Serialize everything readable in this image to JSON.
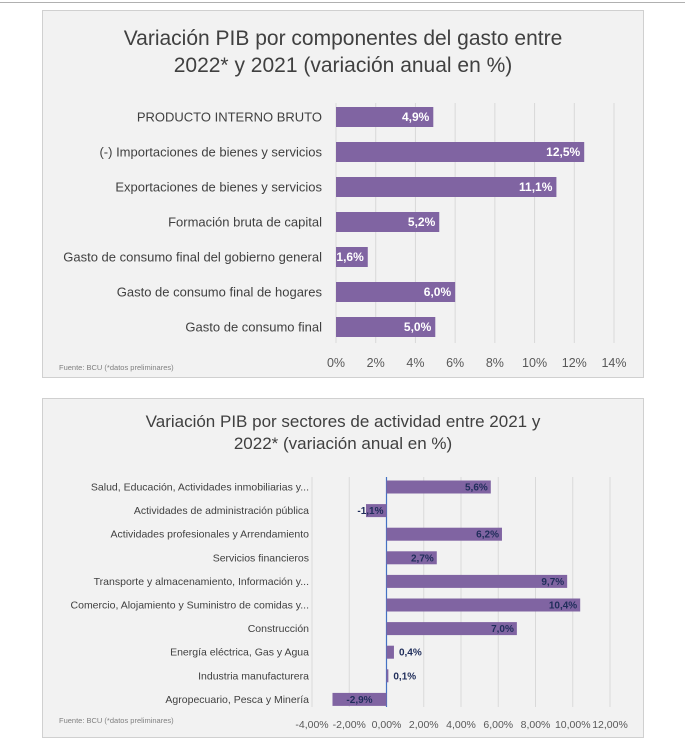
{
  "colors": {
    "bar": "#8064a2",
    "grid": "#d9d9d9",
    "axis": "#4472c4",
    "label_dark": "#1f2d5a"
  },
  "chart_data": [
    {
      "type": "bar",
      "orientation": "horizontal",
      "title": "Variación PIB por componentes del gasto entre\n2022* y 2021 (variación anual en %)",
      "source": "Fuente: BCU (*datos preliminares)",
      "categories": [
        "PRODUCTO INTERNO BRUTO",
        "(-) Importaciones de bienes y servicios",
        "Exportaciones de bienes y servicios",
        "Formación bruta de capital",
        "Gasto de consumo final del gobierno general",
        "Gasto de consumo final de hogares",
        "Gasto de consumo final"
      ],
      "values": [
        4.9,
        12.5,
        11.1,
        5.2,
        1.6,
        6.0,
        5.0
      ],
      "value_labels": [
        "4,9%",
        "12,5%",
        "11,1%",
        "5,2%",
        "1,6%",
        "6,0%",
        "5,0%"
      ],
      "xlim": [
        0,
        14
      ],
      "tick_values": [
        0,
        2,
        4,
        6,
        8,
        10,
        12,
        14
      ],
      "tick_labels": [
        "0%",
        "2%",
        "4%",
        "6%",
        "8%",
        "10%",
        "12%",
        "14%"
      ],
      "grid": true,
      "legend": "none"
    },
    {
      "type": "bar",
      "orientation": "horizontal",
      "title": "Variación PIB por sectores de actividad entre 2021 y\n2022* (variación anual en %)",
      "source": "Fuente: BCU (*datos preliminares)",
      "categories": [
        "Salud, Educación, Actividades inmobiliarias y...",
        "Actividades de administración pública",
        "Actividades profesionales y Arrendamiento",
        "Servicios financieros",
        "Transporte y almacenamiento, Información y...",
        "Comercio,  Alojamiento y Suministro de comidas y...",
        "Construcción",
        "Energía eléctrica, Gas y Agua",
        "Industria manufacturera",
        "Agropecuario, Pesca y Minería"
      ],
      "values": [
        5.6,
        -1.1,
        6.2,
        2.7,
        9.7,
        10.4,
        7.0,
        0.4,
        0.1,
        -2.9
      ],
      "value_labels": [
        "5,6%",
        "-1,1%",
        "6,2%",
        "2,7%",
        "9,7%",
        "10,4%",
        "7,0%",
        "0,4%",
        "0,1%",
        "-2,9%"
      ],
      "xlim": [
        -4,
        12
      ],
      "tick_values": [
        -4,
        -2,
        0,
        2,
        4,
        6,
        8,
        10,
        12
      ],
      "tick_labels": [
        "-4,00%",
        "-2,00%",
        "0,00%",
        "2,00%",
        "4,00%",
        "6,00%",
        "8,00%",
        "10,00%",
        "12,00%"
      ],
      "grid": true,
      "legend": "none"
    }
  ]
}
